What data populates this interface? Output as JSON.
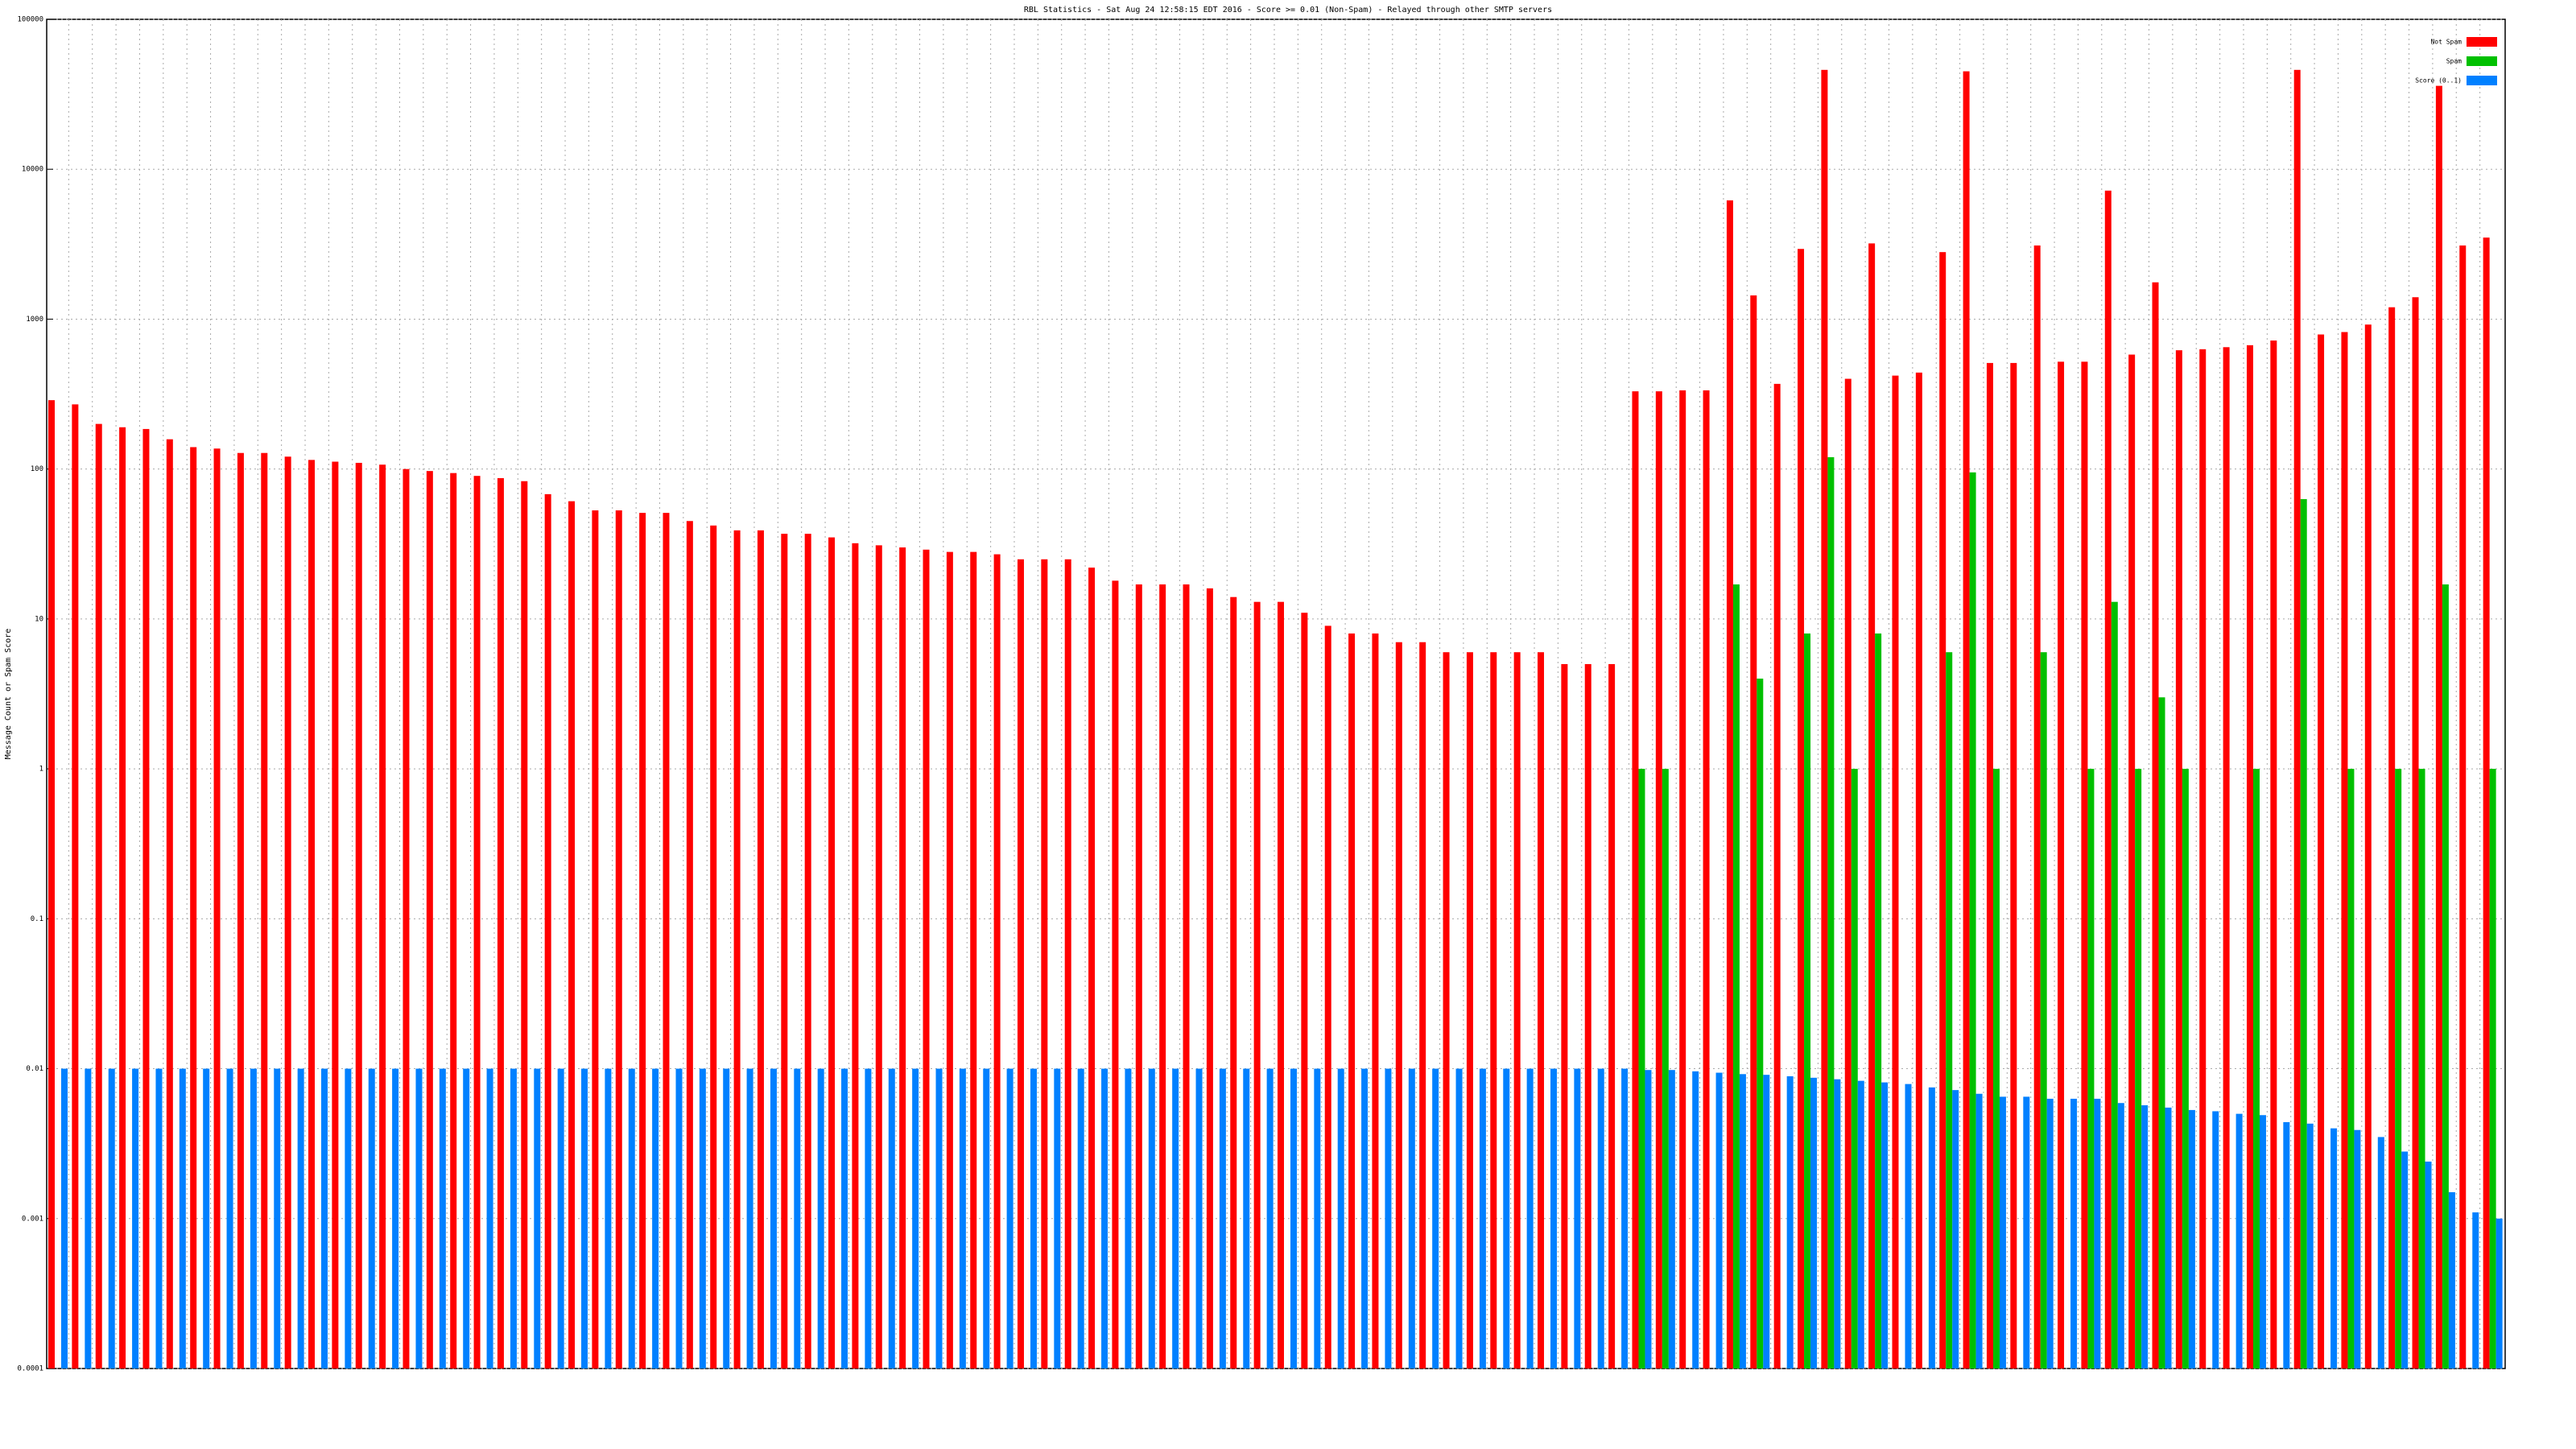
{
  "chart_data": {
    "type": "bar",
    "title": "RBL Statistics - Sat Aug 24 12:58:15 EDT 2016 - Score >= 0.01 (Non-Spam) - Relayed through other SMTP servers",
    "ylabel": "Message Count or Spam Score",
    "log_scale": true,
    "grid": true,
    "legend": "upper right",
    "ylim": [
      0.0001,
      100000
    ],
    "yticks": [
      0.0001,
      0.001,
      0.01,
      0.1,
      1,
      10,
      100,
      1000,
      10000,
      100000
    ],
    "categories": [
      null,
      null,
      null,
      null,
      null,
      null,
      null,
      null,
      null,
      null,
      null,
      null,
      null,
      null,
      null,
      null,
      null,
      null,
      null,
      null,
      null,
      null,
      null,
      null,
      null,
      null,
      null,
      null,
      null,
      null,
      null,
      null,
      null,
      null,
      null,
      null,
      null,
      null,
      null,
      null,
      null,
      null,
      null,
      null,
      null,
      null,
      null,
      null,
      null,
      null,
      null,
      null,
      null,
      null,
      null,
      null,
      null,
      null,
      null,
      null,
      null,
      null,
      null,
      null,
      null,
      null,
      null,
      null,
      null,
      null,
      null,
      null,
      null,
      null,
      null,
      null,
      null,
      null,
      null,
      null,
      null,
      null,
      null,
      null,
      null,
      null,
      null,
      null,
      null,
      null,
      null,
      null,
      null,
      null,
      null,
      null,
      null,
      null,
      null,
      null,
      null,
      null,
      null,
      null
    ],
    "series": [
      {
        "name": "Not Spam",
        "color": "#ff0000",
        "values": [
          288,
          270,
          200,
          190,
          185,
          158,
          140,
          137,
          128,
          128,
          121,
          115,
          112,
          110,
          107,
          100,
          97,
          94,
          90,
          87,
          83,
          68,
          61,
          53,
          53,
          51,
          51,
          45,
          42,
          39,
          39,
          37,
          37,
          35,
          32,
          31,
          30,
          29,
          28,
          28,
          27,
          25,
          25,
          25,
          22,
          18,
          17,
          17,
          17,
          16,
          14,
          13,
          13,
          11,
          9,
          8,
          8,
          7,
          7,
          6,
          6,
          6,
          6,
          6,
          5,
          5,
          5,
          330,
          330,
          335,
          335,
          6200,
          1440,
          370,
          2940,
          46000,
          400,
          3200,
          420,
          440,
          2800,
          45000,
          510,
          510,
          3100,
          520,
          520,
          7200,
          580,
          1760,
          620,
          630,
          650,
          670,
          720,
          46000,
          790,
          820,
          920,
          1200,
          1400,
          36000,
          3100,
          3500
        ]
      },
      {
        "name": "Spam",
        "color": "#00c000",
        "values": [
          null,
          null,
          null,
          null,
          null,
          null,
          null,
          null,
          null,
          null,
          null,
          null,
          null,
          null,
          null,
          null,
          null,
          null,
          null,
          null,
          null,
          null,
          null,
          null,
          null,
          null,
          null,
          null,
          null,
          null,
          null,
          null,
          null,
          null,
          null,
          null,
          null,
          null,
          null,
          null,
          null,
          null,
          null,
          null,
          null,
          null,
          null,
          null,
          null,
          null,
          null,
          null,
          null,
          null,
          null,
          null,
          null,
          null,
          null,
          null,
          null,
          null,
          null,
          null,
          null,
          null,
          null,
          1,
          1,
          null,
          null,
          17,
          4,
          null,
          8,
          120,
          1,
          8,
          null,
          null,
          6,
          95,
          1,
          null,
          6,
          null,
          1,
          13,
          1,
          3,
          1,
          null,
          null,
          1,
          null,
          63,
          null,
          1,
          null,
          1,
          1,
          17,
          null,
          1
        ]
      },
      {
        "name": "Score (0..1)",
        "color": "#0080ff",
        "values": [
          0.01,
          0.01,
          0.01,
          0.01,
          0.01,
          0.01,
          0.01,
          0.01,
          0.01,
          0.01,
          0.01,
          0.01,
          0.01,
          0.01,
          0.01,
          0.01,
          0.01,
          0.01,
          0.01,
          0.01,
          0.01,
          0.01,
          0.01,
          0.01,
          0.01,
          0.01,
          0.01,
          0.01,
          0.01,
          0.01,
          0.01,
          0.01,
          0.01,
          0.01,
          0.01,
          0.01,
          0.01,
          0.01,
          0.01,
          0.01,
          0.01,
          0.01,
          0.01,
          0.01,
          0.01,
          0.01,
          0.01,
          0.01,
          0.01,
          0.01,
          0.01,
          0.01,
          0.01,
          0.01,
          0.01,
          0.01,
          0.01,
          0.01,
          0.01,
          0.01,
          0.01,
          0.01,
          0.01,
          0.01,
          0.01,
          0.01,
          0.01,
          0.0098,
          0.0098,
          0.0096,
          0.0094,
          0.0092,
          0.0091,
          0.0089,
          0.0087,
          0.0085,
          0.0083,
          0.0081,
          0.0079,
          0.0075,
          0.0072,
          0.0068,
          0.0065,
          0.0065,
          0.0063,
          0.0063,
          0.0063,
          0.0059,
          0.0057,
          0.0055,
          0.0053,
          0.0052,
          0.005,
          0.0049,
          0.0044,
          0.0043,
          0.004,
          0.0039,
          0.0035,
          0.0028,
          0.0024,
          0.0015,
          0.0011,
          0.001
        ]
      }
    ]
  }
}
